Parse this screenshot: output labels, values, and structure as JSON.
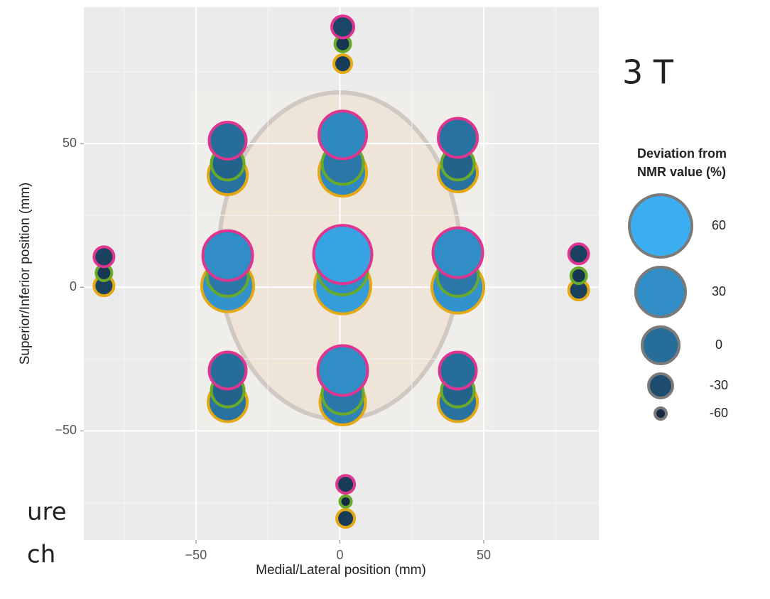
{
  "chart_data": {
    "type": "bubble",
    "heading": "3 T",
    "fragments": [
      "ure",
      "ch"
    ],
    "xlabel": "Medial/Lateral position (mm)",
    "ylabel": "Superior/Inferior position (mm)",
    "xlim": [
      -89,
      90
    ],
    "ylim": [
      -88,
      97.5
    ],
    "xticks": [
      {
        "value": -50,
        "label": "−50"
      },
      0,
      50
    ],
    "yticks": [
      {
        "value": -50,
        "label": "−50"
      },
      0,
      50
    ],
    "x_minor": [
      -75,
      -25,
      25,
      75
    ],
    "y_minor": [
      -75,
      -25,
      25,
      75
    ],
    "grid": true,
    "size_legend": {
      "title": [
        "Deviation from",
        "NMR value (%)"
      ],
      "values": [
        60,
        30,
        0,
        -30,
        -60
      ]
    },
    "series": [
      {
        "color": "#e3a812",
        "x": [
          1,
          -39,
          1,
          41,
          -82,
          -39,
          1,
          41,
          83,
          -39,
          1,
          41,
          2
        ],
        "y": [
          77.8,
          39,
          40,
          40,
          0.5,
          0.5,
          0.5,
          0,
          -1,
          -40,
          -40,
          -40,
          -80.5
        ],
        "size": [
          -45,
          5,
          25,
          5,
          -40,
          35,
          45,
          35,
          -40,
          5,
          20,
          5,
          -45
        ]
      },
      {
        "color": "#6aaa2a",
        "x": [
          1,
          -39,
          1,
          41,
          -82,
          -39,
          1,
          41,
          83,
          -39,
          1,
          41,
          2
        ],
        "y": [
          84.7,
          43,
          43,
          43,
          5,
          4,
          6,
          4,
          4,
          -36,
          -37,
          -36,
          -74.6
        ],
        "size": [
          -50,
          -10,
          10,
          -10,
          -50,
          10,
          30,
          10,
          -50,
          -10,
          10,
          -10,
          -60
        ]
      },
      {
        "color": "#e0358f",
        "x": [
          1,
          -39,
          1,
          41,
          -82,
          -39,
          1,
          41,
          83,
          -39,
          1,
          41,
          2
        ],
        "y": [
          90.6,
          51,
          53,
          52,
          10.6,
          11,
          11.4,
          12,
          11.6,
          -29,
          -29,
          -29,
          -68.6
        ],
        "size": [
          -35,
          0,
          25,
          5,
          -40,
          30,
          50,
          30,
          -40,
          0,
          30,
          0,
          -45
        ]
      }
    ]
  }
}
